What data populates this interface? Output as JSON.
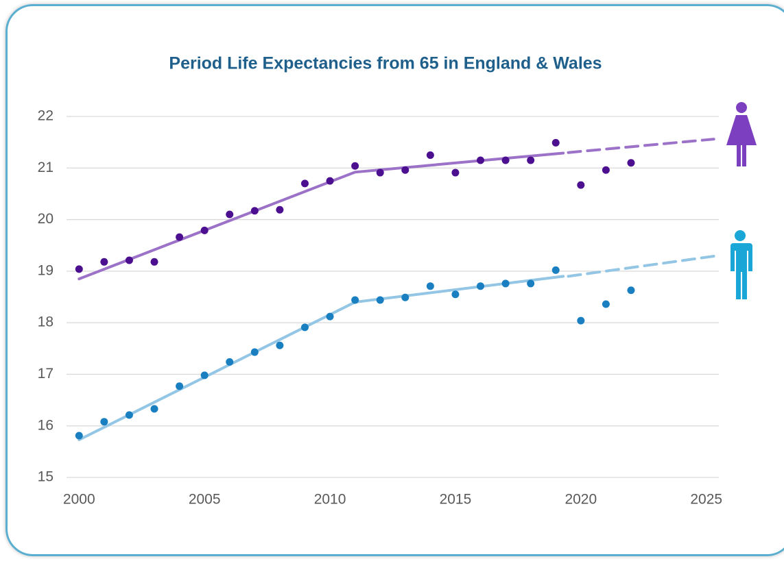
{
  "chart_data": {
    "type": "line",
    "title": "Period Life Expectancies from 65 in England & Wales",
    "xlim": [
      1999.5,
      2025.5
    ],
    "xticks": [
      2000,
      2005,
      2010,
      2015,
      2020,
      2025
    ],
    "ylim": [
      15,
      22
    ],
    "yticks": [
      15,
      16,
      17,
      18,
      19,
      20,
      21,
      22
    ],
    "grid": true,
    "series": [
      {
        "kind": "line",
        "color": "#9b72c7",
        "dashed": false,
        "x": [
          2000,
          2011,
          2019.3
        ],
        "values": [
          18.85,
          20.92,
          21.29
        ]
      },
      {
        "kind": "line",
        "color": "#9b72c7",
        "dashed": true,
        "x": [
          2019.5,
          2025.3
        ],
        "values": [
          21.3,
          21.56
        ]
      },
      {
        "kind": "line",
        "color": "#93c5e4",
        "dashed": false,
        "x": [
          2000,
          2011,
          2019.3
        ],
        "values": [
          15.73,
          18.4,
          18.9
        ]
      },
      {
        "kind": "line",
        "color": "#93c5e4",
        "dashed": true,
        "x": [
          2019.5,
          2025.3
        ],
        "values": [
          18.9,
          19.29
        ]
      },
      {
        "kind": "scatter",
        "color": "#4b0f8f",
        "x": [
          2000,
          2001,
          2002,
          2003,
          2004,
          2005,
          2006,
          2007,
          2008,
          2009,
          2010,
          2011,
          2012,
          2013,
          2014,
          2015,
          2016,
          2017,
          2018,
          2019,
          2020,
          2021,
          2022
        ],
        "values": [
          19.04,
          19.18,
          19.21,
          19.18,
          19.66,
          19.79,
          20.1,
          20.17,
          20.19,
          20.7,
          20.75,
          21.04,
          20.91,
          20.96,
          21.25,
          20.91,
          21.15,
          21.15,
          21.15,
          21.49,
          20.67,
          20.96,
          21.1
        ]
      },
      {
        "kind": "scatter",
        "color": "#1a7fc1",
        "x": [
          2000,
          2001,
          2002,
          2003,
          2004,
          2005,
          2006,
          2007,
          2008,
          2009,
          2010,
          2011,
          2012,
          2013,
          2014,
          2015,
          2016,
          2017,
          2018,
          2019,
          2020,
          2021,
          2022
        ],
        "values": [
          15.81,
          16.08,
          16.21,
          16.33,
          16.77,
          16.98,
          17.24,
          17.43,
          17.56,
          17.91,
          18.12,
          18.44,
          18.44,
          18.49,
          18.71,
          18.55,
          18.71,
          18.76,
          18.76,
          19.02,
          18.04,
          18.36,
          18.63
        ]
      }
    ]
  }
}
